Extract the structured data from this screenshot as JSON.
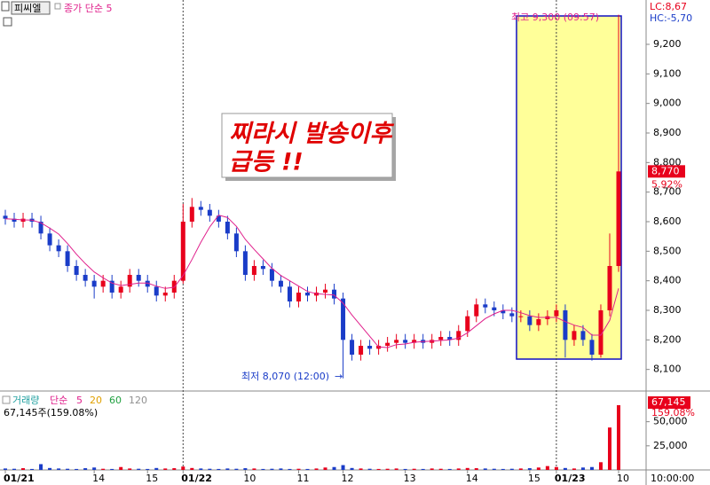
{
  "chart_data": {
    "type": "candlestick",
    "stock": "피씨엘",
    "ma_label": "종가 단순 5",
    "lc": "LC:8,67",
    "hc": "HC:-5,70",
    "annotation": [
      "찌라시 발송이후",
      "급등 !!"
    ],
    "high_note": "최고 9,300 (09:57)",
    "low_note": "최저 8,070 (12:00)",
    "last_price": {
      "value": 8770,
      "label": "8,770"
    },
    "change": "5.92%",
    "categories": [
      "01/21",
      null,
      null,
      null,
      null,
      null,
      null,
      null,
      null,
      null,
      "14",
      null,
      null,
      null,
      null,
      null,
      "15",
      null,
      null,
      null,
      "01/22",
      null,
      null,
      null,
      null,
      null,
      null,
      "10",
      null,
      null,
      null,
      null,
      null,
      "11",
      null,
      null,
      null,
      null,
      "12",
      null,
      null,
      null,
      null,
      null,
      null,
      "13",
      null,
      null,
      null,
      null,
      null,
      null,
      "14",
      null,
      null,
      null,
      null,
      null,
      null,
      "15",
      null,
      null,
      "01/23",
      null,
      null,
      null,
      null,
      null,
      null,
      "10"
    ],
    "right_label": "10:00:00",
    "open": [
      8620,
      8610,
      8600,
      8610,
      8600,
      8560,
      8520,
      8500,
      8450,
      8420,
      8400,
      8380,
      8400,
      8360,
      8380,
      8420,
      8400,
      8380,
      8350,
      8360,
      8400,
      8600,
      8650,
      8640,
      8620,
      8600,
      8560,
      8500,
      8420,
      8450,
      8440,
      8400,
      8380,
      8330,
      8360,
      8350,
      8360,
      8370,
      8340,
      8200,
      8150,
      8180,
      8170,
      8180,
      8190,
      8200,
      8190,
      8200,
      8190,
      8200,
      8210,
      8200,
      8230,
      8280,
      8320,
      8310,
      8300,
      8290,
      8280,
      8280,
      8250,
      8270,
      8280,
      8300,
      8200,
      8230,
      8200,
      8150,
      8300,
      8450
    ],
    "high": [
      8640,
      8630,
      8630,
      8630,
      8620,
      8580,
      8540,
      8520,
      8470,
      8440,
      8420,
      8420,
      8420,
      8400,
      8440,
      8440,
      8420,
      8400,
      8380,
      8420,
      8660,
      8680,
      8670,
      8660,
      8640,
      8620,
      8580,
      8520,
      8470,
      8470,
      8460,
      8420,
      8400,
      8380,
      8380,
      8380,
      8390,
      8390,
      8360,
      8220,
      8200,
      8200,
      8200,
      8210,
      8220,
      8220,
      8220,
      8220,
      8220,
      8230,
      8230,
      8250,
      8300,
      8340,
      8340,
      8330,
      8320,
      8310,
      8300,
      8300,
      8290,
      8300,
      8320,
      8320,
      8250,
      8250,
      8220,
      8320,
      8560,
      9300
    ],
    "low": [
      8590,
      8580,
      8580,
      8580,
      8540,
      8500,
      8480,
      8430,
      8400,
      8380,
      8340,
      8360,
      8340,
      8340,
      8360,
      8380,
      8360,
      8330,
      8330,
      8340,
      8390,
      8580,
      8620,
      8600,
      8580,
      8540,
      8480,
      8400,
      8400,
      8420,
      8380,
      8360,
      8310,
      8310,
      8330,
      8330,
      8340,
      8320,
      8070,
      8130,
      8130,
      8150,
      8150,
      8160,
      8170,
      8170,
      8170,
      8170,
      8170,
      8180,
      8180,
      8180,
      8210,
      8260,
      8290,
      8280,
      8270,
      8260,
      8260,
      8230,
      8230,
      8250,
      8260,
      8140,
      8180,
      8180,
      8130,
      8140,
      8280,
      8430
    ],
    "close": [
      8610,
      8600,
      8610,
      8600,
      8560,
      8520,
      8500,
      8450,
      8420,
      8400,
      8380,
      8400,
      8360,
      8380,
      8420,
      8400,
      8380,
      8350,
      8360,
      8400,
      8600,
      8650,
      8640,
      8620,
      8600,
      8560,
      8500,
      8420,
      8450,
      8440,
      8400,
      8380,
      8330,
      8360,
      8350,
      8360,
      8370,
      8340,
      8200,
      8150,
      8180,
      8170,
      8180,
      8190,
      8200,
      8190,
      8200,
      8190,
      8200,
      8210,
      8200,
      8230,
      8280,
      8320,
      8310,
      8300,
      8290,
      8280,
      8280,
      8250,
      8270,
      8280,
      8300,
      8200,
      8230,
      8200,
      8150,
      8300,
      8450,
      8770
    ],
    "ma5": [
      8610,
      8608,
      8606,
      8605,
      8596,
      8578,
      8558,
      8526,
      8490,
      8458,
      8430,
      8410,
      8392,
      8384,
      8388,
      8392,
      8392,
      8382,
      8374,
      8378,
      8418,
      8472,
      8530,
      8582,
      8622,
      8614,
      8584,
      8540,
      8506,
      8474,
      8442,
      8418,
      8400,
      8382,
      8364,
      8356,
      8354,
      8352,
      8324,
      8284,
      8248,
      8212,
      8176,
      8174,
      8184,
      8186,
      8192,
      8194,
      8196,
      8198,
      8200,
      8206,
      8224,
      8248,
      8272,
      8288,
      8300,
      8300,
      8292,
      8282,
      8276,
      8276,
      8276,
      8262,
      8250,
      8242,
      8216,
      8216,
      8266,
      8374
    ],
    "up_color": "#e8001c",
    "down_color": "#1a3cc8",
    "ma_color": "#e0208c",
    "ylim": [
      8030,
      9350
    ],
    "yticks": [
      {
        "value": 8100,
        "label": "8,100"
      },
      {
        "value": 8200,
        "label": "8,200"
      },
      {
        "value": 8300,
        "label": "8,300"
      },
      {
        "value": 8400,
        "label": "8,400"
      },
      {
        "value": 8500,
        "label": "8,500"
      },
      {
        "value": 8600,
        "label": "8,600"
      },
      {
        "value": 8700,
        "label": "8,700"
      },
      {
        "value": 8800,
        "label": "8,800"
      },
      {
        "value": 8900,
        "label": "8,900"
      },
      {
        "value": 9000,
        "label": "9,000"
      },
      {
        "value": 9100,
        "label": "9,100"
      },
      {
        "value": 9200,
        "label": "9,200"
      }
    ],
    "volume": {
      "title": "거래량",
      "ma_type": "단순",
      "ma_periods": [
        {
          "value": 5,
          "color": "#e0208c"
        },
        {
          "value": 20,
          "color": "#e0a000"
        },
        {
          "value": 60,
          "color": "#20a040"
        },
        {
          "value": 120,
          "color": "#909090"
        }
      ],
      "summary": "67,145주(159.08%)",
      "last": {
        "value": 67145,
        "label": "67,145"
      },
      "ratio": "159.08%",
      "values": [
        1500,
        1200,
        1800,
        1000,
        6000,
        2000,
        1500,
        1200,
        1000,
        1800,
        2500,
        1200,
        1000,
        3000,
        1500,
        1200,
        1000,
        2000,
        1500,
        1800,
        3500,
        2000,
        1500,
        1200,
        1000,
        1500,
        1200,
        1800,
        1500,
        1000,
        1200,
        1500,
        1000,
        1200,
        1000,
        1500,
        2500,
        3000,
        5000,
        2000,
        1500,
        1200,
        1000,
        1200,
        1500,
        1000,
        1200,
        1000,
        1500,
        1200,
        1000,
        1500,
        2000,
        1800,
        1500,
        1200,
        1000,
        1200,
        1500,
        1800,
        2500,
        4000,
        3000,
        2000,
        1500,
        2500,
        3000,
        8000,
        44000,
        67145
      ],
      "ylim": [
        0,
        80000
      ],
      "yticks": [
        {
          "value": 25000,
          "label": "25,000"
        },
        {
          "value": 50000,
          "label": "50,000"
        }
      ]
    }
  }
}
